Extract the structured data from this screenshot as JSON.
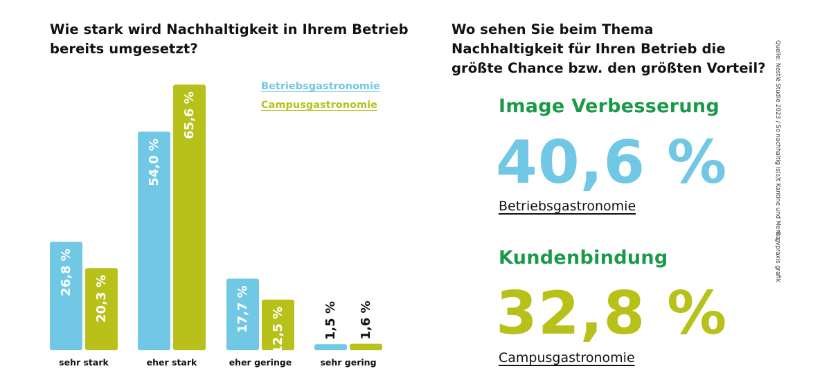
{
  "colors": {
    "betrieb": "#71c8e5",
    "campus": "#b7c11a",
    "accent_green": "#1a9a48",
    "text": "#111111"
  },
  "left": {
    "title": "Wie stark wird Nachhaltigkeit in Ihrem Betrieb bereits umgesetzt?"
  },
  "chart_data": {
    "type": "bar",
    "title": "Wie stark wird Nachhaltigkeit in Ihrem Betrieb bereits umgesetzt?",
    "categories": [
      "sehr stark",
      "eher stark",
      "eher geringe",
      "sehr gering"
    ],
    "series": [
      {
        "name": "Betriebsgastronomie",
        "values": [
          26.8,
          54.0,
          17.7,
          1.5
        ],
        "labels": [
          "26,8 %",
          "54,0 %",
          "17,7 %",
          "1,5 %"
        ]
      },
      {
        "name": "Campusgastronomie",
        "values": [
          20.3,
          65.6,
          12.5,
          1.6
        ],
        "labels": [
          "20,3 %",
          "65,6 %",
          "12,5 %",
          "1,6 %"
        ]
      }
    ],
    "ylim": [
      0,
      70
    ],
    "grid": false,
    "legend_placement": "top-right"
  },
  "right": {
    "title": "Wo sehen Sie beim Thema Nachhaltigkeit für Ihren Betrieb die größte Chance bzw. den größten Vorteil?",
    "stats": [
      {
        "heading": "Image Verbesserung",
        "value": "40,6 %",
        "label": "Betriebsgastronomie"
      },
      {
        "heading": "Kundenbindung",
        "value": "32,8 %",
        "label": "Campusgastronomie"
      }
    ]
  },
  "side": {
    "source": "Quelle: Nestlé Studie 2023 / So nachhaltig is(s)t Kantine und Mensa",
    "credit": "© gvpraxis grafik"
  }
}
